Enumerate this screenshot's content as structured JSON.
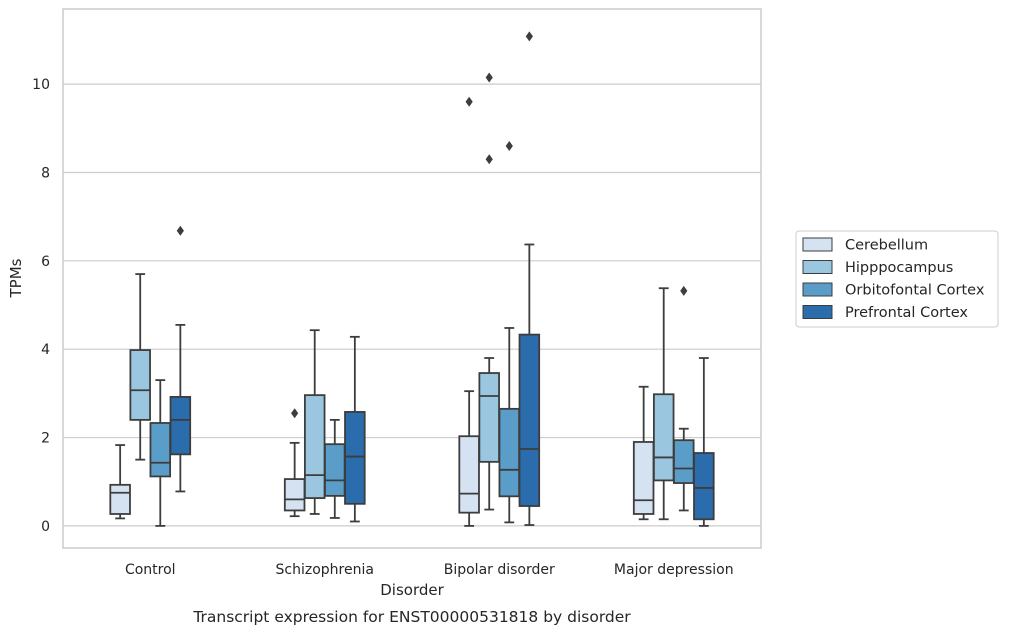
{
  "chart_data": {
    "type": "box",
    "xlabel": "Disorder",
    "ylabel": "TPMs",
    "caption": "Transcript expression for ENST00000531818 by disorder",
    "ylim": [
      -0.5,
      11.7
    ],
    "yticks": [
      0,
      2,
      4,
      6,
      8,
      10
    ],
    "grid": "horizontal",
    "legend_placement": "right",
    "categories": [
      "Control",
      "Schizophrenia",
      "Bipolar disorder",
      "Major depression"
    ],
    "series": [
      {
        "name": "Cerebellum",
        "color": "#d4e2f1",
        "boxes": [
          {
            "whisker_low": 0.17,
            "q1": 0.27,
            "median": 0.75,
            "q3": 0.93,
            "whisker_high": 1.83,
            "outliers": []
          },
          {
            "whisker_low": 0.22,
            "q1": 0.35,
            "median": 0.6,
            "q3": 1.06,
            "whisker_high": 1.88,
            "outliers": [
              2.55
            ]
          },
          {
            "whisker_low": 0.0,
            "q1": 0.3,
            "median": 0.73,
            "q3": 2.03,
            "whisker_high": 3.05,
            "outliers": [
              9.6
            ]
          },
          {
            "whisker_low": 0.15,
            "q1": 0.27,
            "median": 0.58,
            "q3": 1.9,
            "whisker_high": 3.15,
            "outliers": []
          }
        ]
      },
      {
        "name": "Hipppocampus",
        "color": "#9ac7df",
        "boxes": [
          {
            "whisker_low": 1.5,
            "q1": 2.4,
            "median": 3.07,
            "q3": 3.98,
            "whisker_high": 5.7,
            "outliers": []
          },
          {
            "whisker_low": 0.27,
            "q1": 0.63,
            "median": 1.15,
            "q3": 2.96,
            "whisker_high": 4.43,
            "outliers": []
          },
          {
            "whisker_low": 0.37,
            "q1": 1.45,
            "median": 2.94,
            "q3": 3.46,
            "whisker_high": 3.8,
            "outliers": [
              8.3,
              10.15
            ]
          },
          {
            "whisker_low": 0.15,
            "q1": 1.03,
            "median": 1.55,
            "q3": 2.98,
            "whisker_high": 5.38,
            "outliers": []
          }
        ]
      },
      {
        "name": "Orbitofontal Cortex",
        "color": "#5b9dc9",
        "boxes": [
          {
            "whisker_low": 0.0,
            "q1": 1.12,
            "median": 1.43,
            "q3": 2.33,
            "whisker_high": 3.3,
            "outliers": []
          },
          {
            "whisker_low": 0.18,
            "q1": 0.68,
            "median": 1.03,
            "q3": 1.85,
            "whisker_high": 2.4,
            "outliers": []
          },
          {
            "whisker_low": 0.08,
            "q1": 0.67,
            "median": 1.27,
            "q3": 2.65,
            "whisker_high": 4.48,
            "outliers": [
              8.6
            ]
          },
          {
            "whisker_low": 0.35,
            "q1": 0.97,
            "median": 1.3,
            "q3": 1.94,
            "whisker_high": 2.2,
            "outliers": [
              5.32
            ]
          }
        ]
      },
      {
        "name": "Prefrontal Cortex",
        "color": "#2a6cac",
        "boxes": [
          {
            "whisker_low": 0.78,
            "q1": 1.62,
            "median": 2.4,
            "q3": 2.92,
            "whisker_high": 4.55,
            "outliers": [
              6.68
            ]
          },
          {
            "whisker_low": 0.1,
            "q1": 0.5,
            "median": 1.57,
            "q3": 2.58,
            "whisker_high": 4.28,
            "outliers": []
          },
          {
            "whisker_low": 0.02,
            "q1": 0.45,
            "median": 1.74,
            "q3": 4.33,
            "whisker_high": 6.37,
            "outliers": [
              11.08
            ]
          },
          {
            "whisker_low": 0.0,
            "q1": 0.15,
            "median": 0.86,
            "q3": 1.65,
            "whisker_high": 3.8,
            "outliers": []
          }
        ]
      }
    ]
  }
}
